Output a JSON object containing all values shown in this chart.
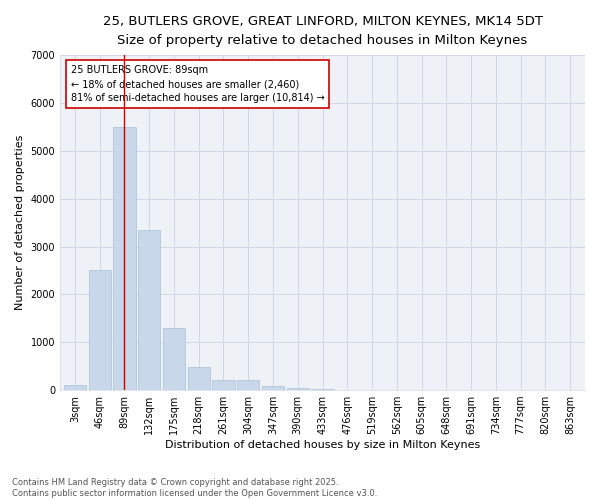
{
  "title_line1": "25, BUTLERS GROVE, GREAT LINFORD, MILTON KEYNES, MK14 5DT",
  "title_line2": "Size of property relative to detached houses in Milton Keynes",
  "xlabel": "Distribution of detached houses by size in Milton Keynes",
  "ylabel": "Number of detached properties",
  "categories": [
    "3sqm",
    "46sqm",
    "89sqm",
    "132sqm",
    "175sqm",
    "218sqm",
    "261sqm",
    "304sqm",
    "347sqm",
    "390sqm",
    "433sqm",
    "476sqm",
    "519sqm",
    "562sqm",
    "605sqm",
    "648sqm",
    "691sqm",
    "734sqm",
    "777sqm",
    "820sqm",
    "863sqm"
  ],
  "values": [
    100,
    2500,
    5500,
    3350,
    1300,
    480,
    220,
    220,
    90,
    50,
    30,
    0,
    0,
    0,
    0,
    0,
    0,
    0,
    0,
    0,
    0
  ],
  "bar_color": "#c8d8ea",
  "bar_edge_color": "#a8c0d8",
  "highlight_bar_index": 2,
  "highlight_color": "#cc0000",
  "ylim": [
    0,
    7000
  ],
  "yticks": [
    0,
    1000,
    2000,
    3000,
    4000,
    5000,
    6000,
    7000
  ],
  "annotation_title": "25 BUTLERS GROVE: 89sqm",
  "annotation_line1": "← 18% of detached houses are smaller (2,460)",
  "annotation_line2": "81% of semi-detached houses are larger (10,814) →",
  "footer_line1": "Contains HM Land Registry data © Crown copyright and database right 2025.",
  "footer_line2": "Contains public sector information licensed under the Open Government Licence v3.0.",
  "background_color": "#ffffff",
  "plot_bg_color": "#eef2f7",
  "grid_color": "#d0d8e8",
  "title_fontsize": 9.5,
  "subtitle_fontsize": 8.5,
  "axis_label_fontsize": 8,
  "tick_fontsize": 7,
  "annotation_fontsize": 7,
  "footer_fontsize": 6
}
